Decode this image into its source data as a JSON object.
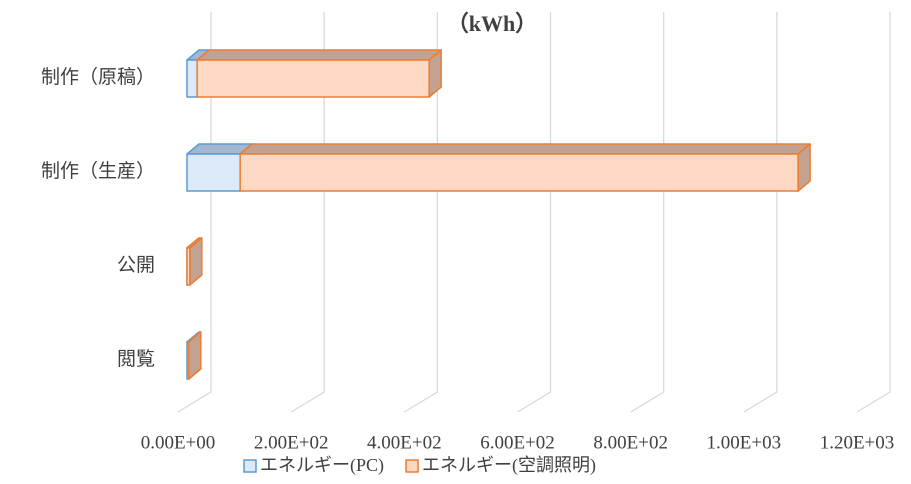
{
  "chart_data": {
    "type": "bar3d_stacked_horizontal",
    "title": "（kWh）",
    "categories": [
      "制作（原稿）",
      "制作（生産）",
      "公開",
      "閲覧"
    ],
    "series": [
      {
        "name": "エネルギー(PC)",
        "color": "#dce9f8",
        "edge": "#5b9bd5",
        "top": "#a3b8d0",
        "values": [
          18,
          94,
          0,
          3
        ]
      },
      {
        "name": "エネルギー(空調照明)",
        "color": "#fdd9c4",
        "edge": "#ed7d31",
        "top": "#c4a292",
        "values": [
          410,
          986,
          5,
          0
        ]
      }
    ],
    "xlim": [
      0,
      1200
    ],
    "xticks": [
      {
        "value": 0,
        "label": "0.00E+00"
      },
      {
        "value": 200,
        "label": "2.00E+02"
      },
      {
        "value": 400,
        "label": "4.00E+02"
      },
      {
        "value": 600,
        "label": "6.00E+02"
      },
      {
        "value": 800,
        "label": "8.00E+02"
      },
      {
        "value": 1000,
        "label": "1.00E+03"
      },
      {
        "value": 1200,
        "label": "1.20E+03"
      }
    ],
    "grid": true,
    "legend": "bottom"
  }
}
